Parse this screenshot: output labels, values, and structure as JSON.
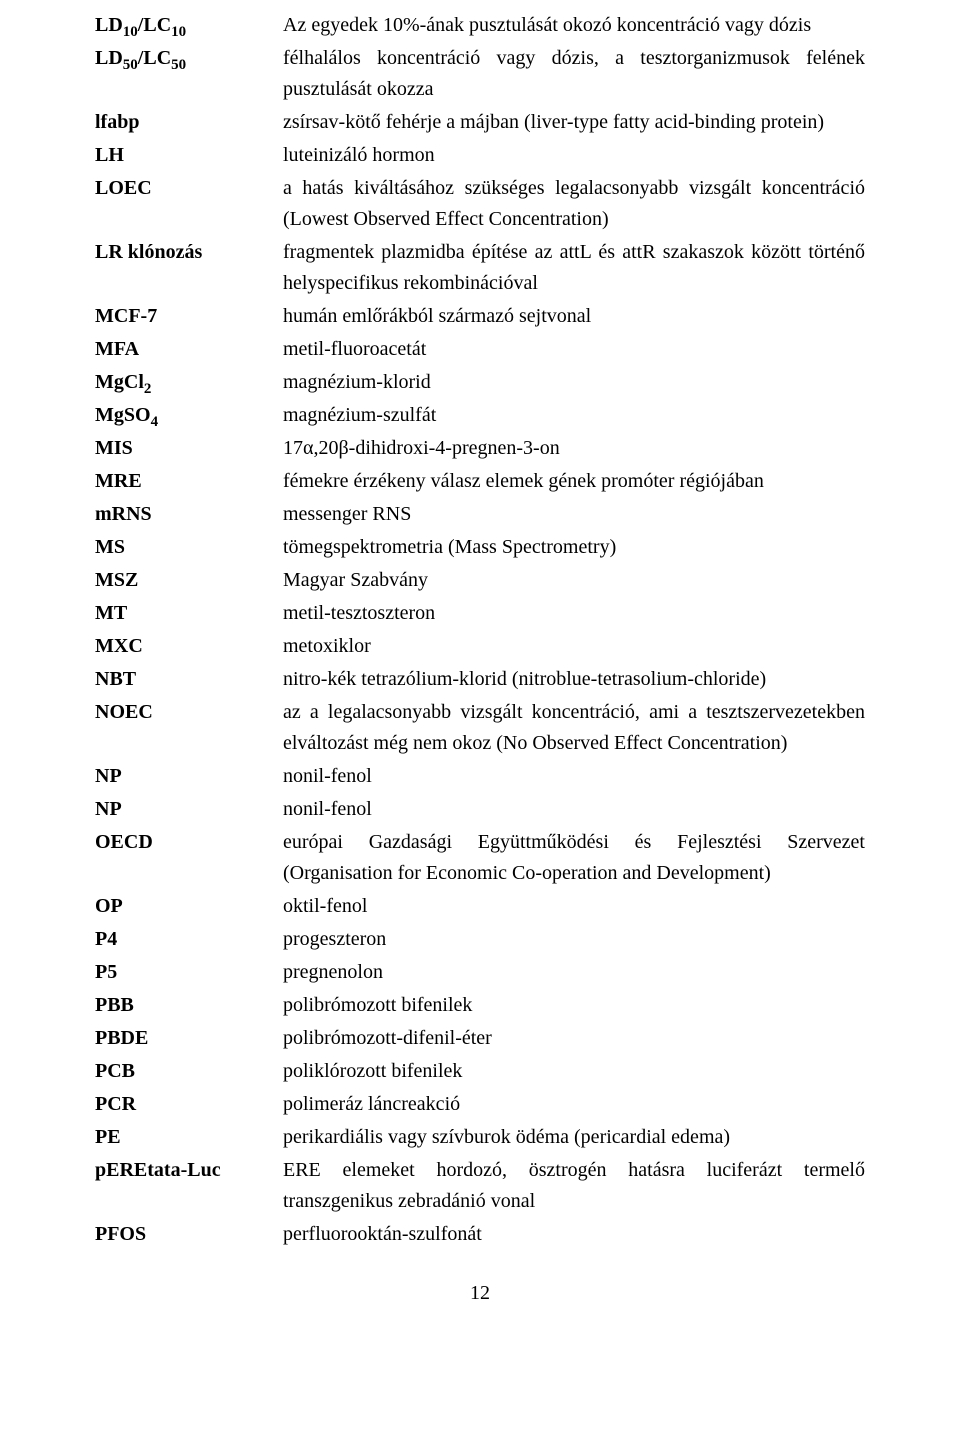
{
  "entries": [
    {
      "term_html": "LD<sub>10</sub>/LC<sub>10</sub>",
      "def": "Az egyedek 10%-ának pusztulását okozó koncentráció vagy dózis",
      "justify": false
    },
    {
      "term_html": "LD<sub>50</sub>/LC<sub>50</sub>",
      "def": "félhalálos koncentráció vagy dózis, a tesztorganizmusok felének pusztulását okozza",
      "justify": true
    },
    {
      "term_html": "lfabp",
      "def": "zsírsav-kötő fehérje a májban (liver-type fatty acid-binding protein)",
      "justify": false
    },
    {
      "term_html": "LH",
      "def": "luteinizáló hormon",
      "justify": false
    },
    {
      "term_html": "LOEC",
      "def": "a hatás kiváltásához szükséges legalacsonyabb vizsgált koncentráció (Lowest Observed Effect Concentration)",
      "justify": true
    },
    {
      "term_html": "LR klónozás",
      "def": "fragmentek plazmidba építése az attL és attR szakaszok között történő helyspecifikus rekombinációval",
      "justify": true
    },
    {
      "term_html": "MCF-7",
      "def": "humán emlőrákból származó sejtvonal",
      "justify": false
    },
    {
      "term_html": "MFA",
      "def": "metil-fluoroacetát",
      "justify": false
    },
    {
      "term_html": "MgCl<sub>2</sub>",
      "def": "magnézium-klorid",
      "justify": false
    },
    {
      "term_html": "MgSO<sub>4</sub>",
      "def": "magnézium-szulfát",
      "justify": false
    },
    {
      "term_html": "MIS",
      "def": "17α,20β-dihidroxi-4-pregnen-3-on",
      "justify": false
    },
    {
      "term_html": "MRE",
      "def": "fémekre érzékeny válasz elemek gének promóter régiójában",
      "justify": false
    },
    {
      "term_html": "mRNS",
      "def": "messenger RNS",
      "justify": false
    },
    {
      "term_html": "MS",
      "def": "tömegspektrometria (Mass Spectrometry)",
      "justify": false
    },
    {
      "term_html": "MSZ",
      "def": "Magyar Szabvány",
      "justify": false
    },
    {
      "term_html": "MT",
      "def": "metil-tesztoszteron",
      "justify": false
    },
    {
      "term_html": "MXC",
      "def": "metoxiklor",
      "justify": false
    },
    {
      "term_html": "NBT",
      "def": "nitro-kék tetrazólium-klorid (nitroblue-tetrasolium-chloride)",
      "justify": false
    },
    {
      "term_html": "NOEC",
      "def": "az a legalacsonyabb vizsgált koncentráció, ami a tesztszervezetekben elváltozást még nem okoz (No Observed Effect Concentration)",
      "justify": true
    },
    {
      "term_html": "NP",
      "def": "nonil-fenol",
      "justify": false
    },
    {
      "term_html": "NP",
      "def": "nonil-fenol",
      "justify": false
    },
    {
      "term_html": "OECD",
      "def": "európai Gazdasági Együttműködési és Fejlesztési Szervezet (Organisation for Economic Co-operation and Development)",
      "justify": true
    },
    {
      "term_html": "OP",
      "def": "oktil-fenol",
      "justify": false
    },
    {
      "term_html": "P4",
      "def": "progeszteron",
      "justify": false
    },
    {
      "term_html": "P5",
      "def": "pregnenolon",
      "justify": false
    },
    {
      "term_html": "PBB",
      "def": "polibrómozott bifenilek",
      "justify": false
    },
    {
      "term_html": "PBDE",
      "def": "polibrómozott-difenil-éter",
      "justify": false
    },
    {
      "term_html": "PCB",
      "def": "poliklórozott bifenilek",
      "justify": false
    },
    {
      "term_html": "PCR",
      "def": "polimeráz láncreakció",
      "justify": false
    },
    {
      "term_html": "PE",
      "def": "perikardiális vagy szívburok ödéma (pericardial edema)",
      "justify": false
    },
    {
      "term_html": "pEREtata-Luc",
      "def": "ERE elemeket hordozó, ösztrogén hatásra luciferázt termelő transzgenikus zebradánió vonal",
      "justify": true
    },
    {
      "term_html": "PFOS",
      "def": "perfluorooktán-szulfonát",
      "justify": false
    }
  ],
  "page_number": "12"
}
